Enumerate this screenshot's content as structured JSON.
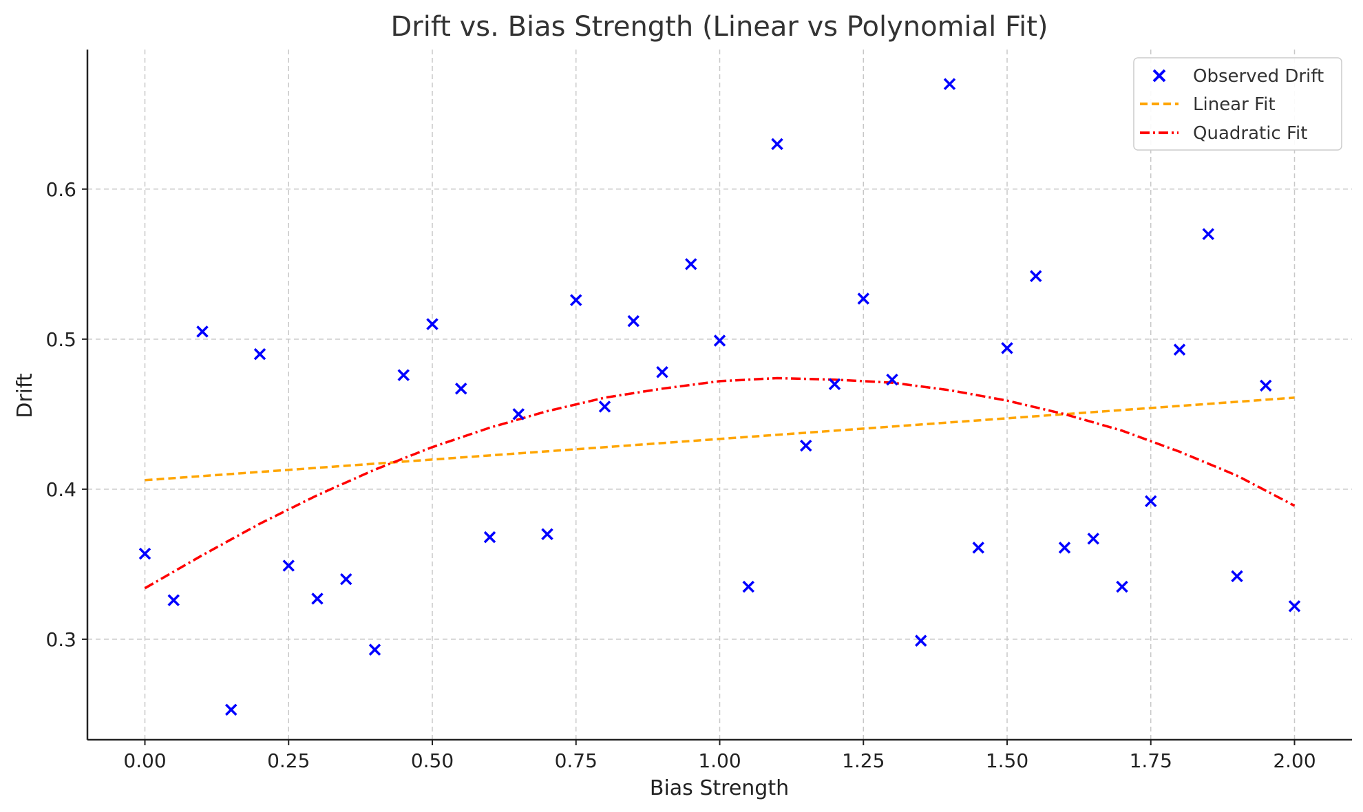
{
  "chart_data": {
    "type": "scatter",
    "title": "Drift vs. Bias Strength (Linear vs Polynomial Fit)",
    "xlabel": "Bias Strength",
    "ylabel": "Drift",
    "xlim": [
      -0.1,
      2.1
    ],
    "ylim": [
      0.233,
      0.693
    ],
    "x_ticks": [
      "0.00",
      "0.25",
      "0.50",
      "0.75",
      "1.00",
      "1.25",
      "1.50",
      "1.75",
      "2.00"
    ],
    "y_ticks": [
      "0.3",
      "0.4",
      "0.5",
      "0.6"
    ],
    "grid": true,
    "legend_position": "top-right",
    "series": [
      {
        "name": "Observed Drift",
        "kind": "scatter",
        "marker": "x",
        "color": "#0000ff",
        "x": [
          0.0,
          0.05,
          0.1,
          0.15,
          0.2,
          0.25,
          0.3,
          0.35,
          0.4,
          0.45,
          0.5,
          0.55,
          0.6,
          0.65,
          0.7,
          0.75,
          0.8,
          0.85,
          0.9,
          0.95,
          1.0,
          1.05,
          1.1,
          1.15,
          1.2,
          1.25,
          1.3,
          1.35,
          1.4,
          1.45,
          1.5,
          1.55,
          1.6,
          1.65,
          1.7,
          1.75,
          1.8,
          1.85,
          1.9,
          1.95,
          2.0
        ],
        "y": [
          0.357,
          0.326,
          0.505,
          0.253,
          0.49,
          0.349,
          0.327,
          0.34,
          0.293,
          0.476,
          0.51,
          0.467,
          0.368,
          0.45,
          0.37,
          0.526,
          0.455,
          0.512,
          0.478,
          0.55,
          0.499,
          0.335,
          0.63,
          0.429,
          0.47,
          0.527,
          0.473,
          0.299,
          0.67,
          0.361,
          0.494,
          0.542,
          0.361,
          0.367,
          0.335,
          0.392,
          0.493,
          0.57,
          0.342,
          0.469,
          0.322
        ]
      },
      {
        "name": "Linear Fit",
        "kind": "line",
        "style": "dashed",
        "color": "#ffa500",
        "x": [
          0.0,
          2.0
        ],
        "y": [
          0.406,
          0.461
        ]
      },
      {
        "name": "Quadratic Fit",
        "kind": "line",
        "style": "dashdot",
        "color": "#ff0000",
        "x": [
          0.0,
          0.1,
          0.2,
          0.3,
          0.4,
          0.5,
          0.6,
          0.7,
          0.8,
          0.9,
          1.0,
          1.1,
          1.2,
          1.3,
          1.4,
          1.5,
          1.6,
          1.7,
          1.8,
          1.9,
          2.0
        ],
        "y": [
          0.334,
          0.356,
          0.377,
          0.396,
          0.413,
          0.428,
          0.441,
          0.452,
          0.461,
          0.467,
          0.472,
          0.474,
          0.473,
          0.471,
          0.466,
          0.459,
          0.45,
          0.439,
          0.425,
          0.409,
          0.389
        ]
      }
    ]
  }
}
